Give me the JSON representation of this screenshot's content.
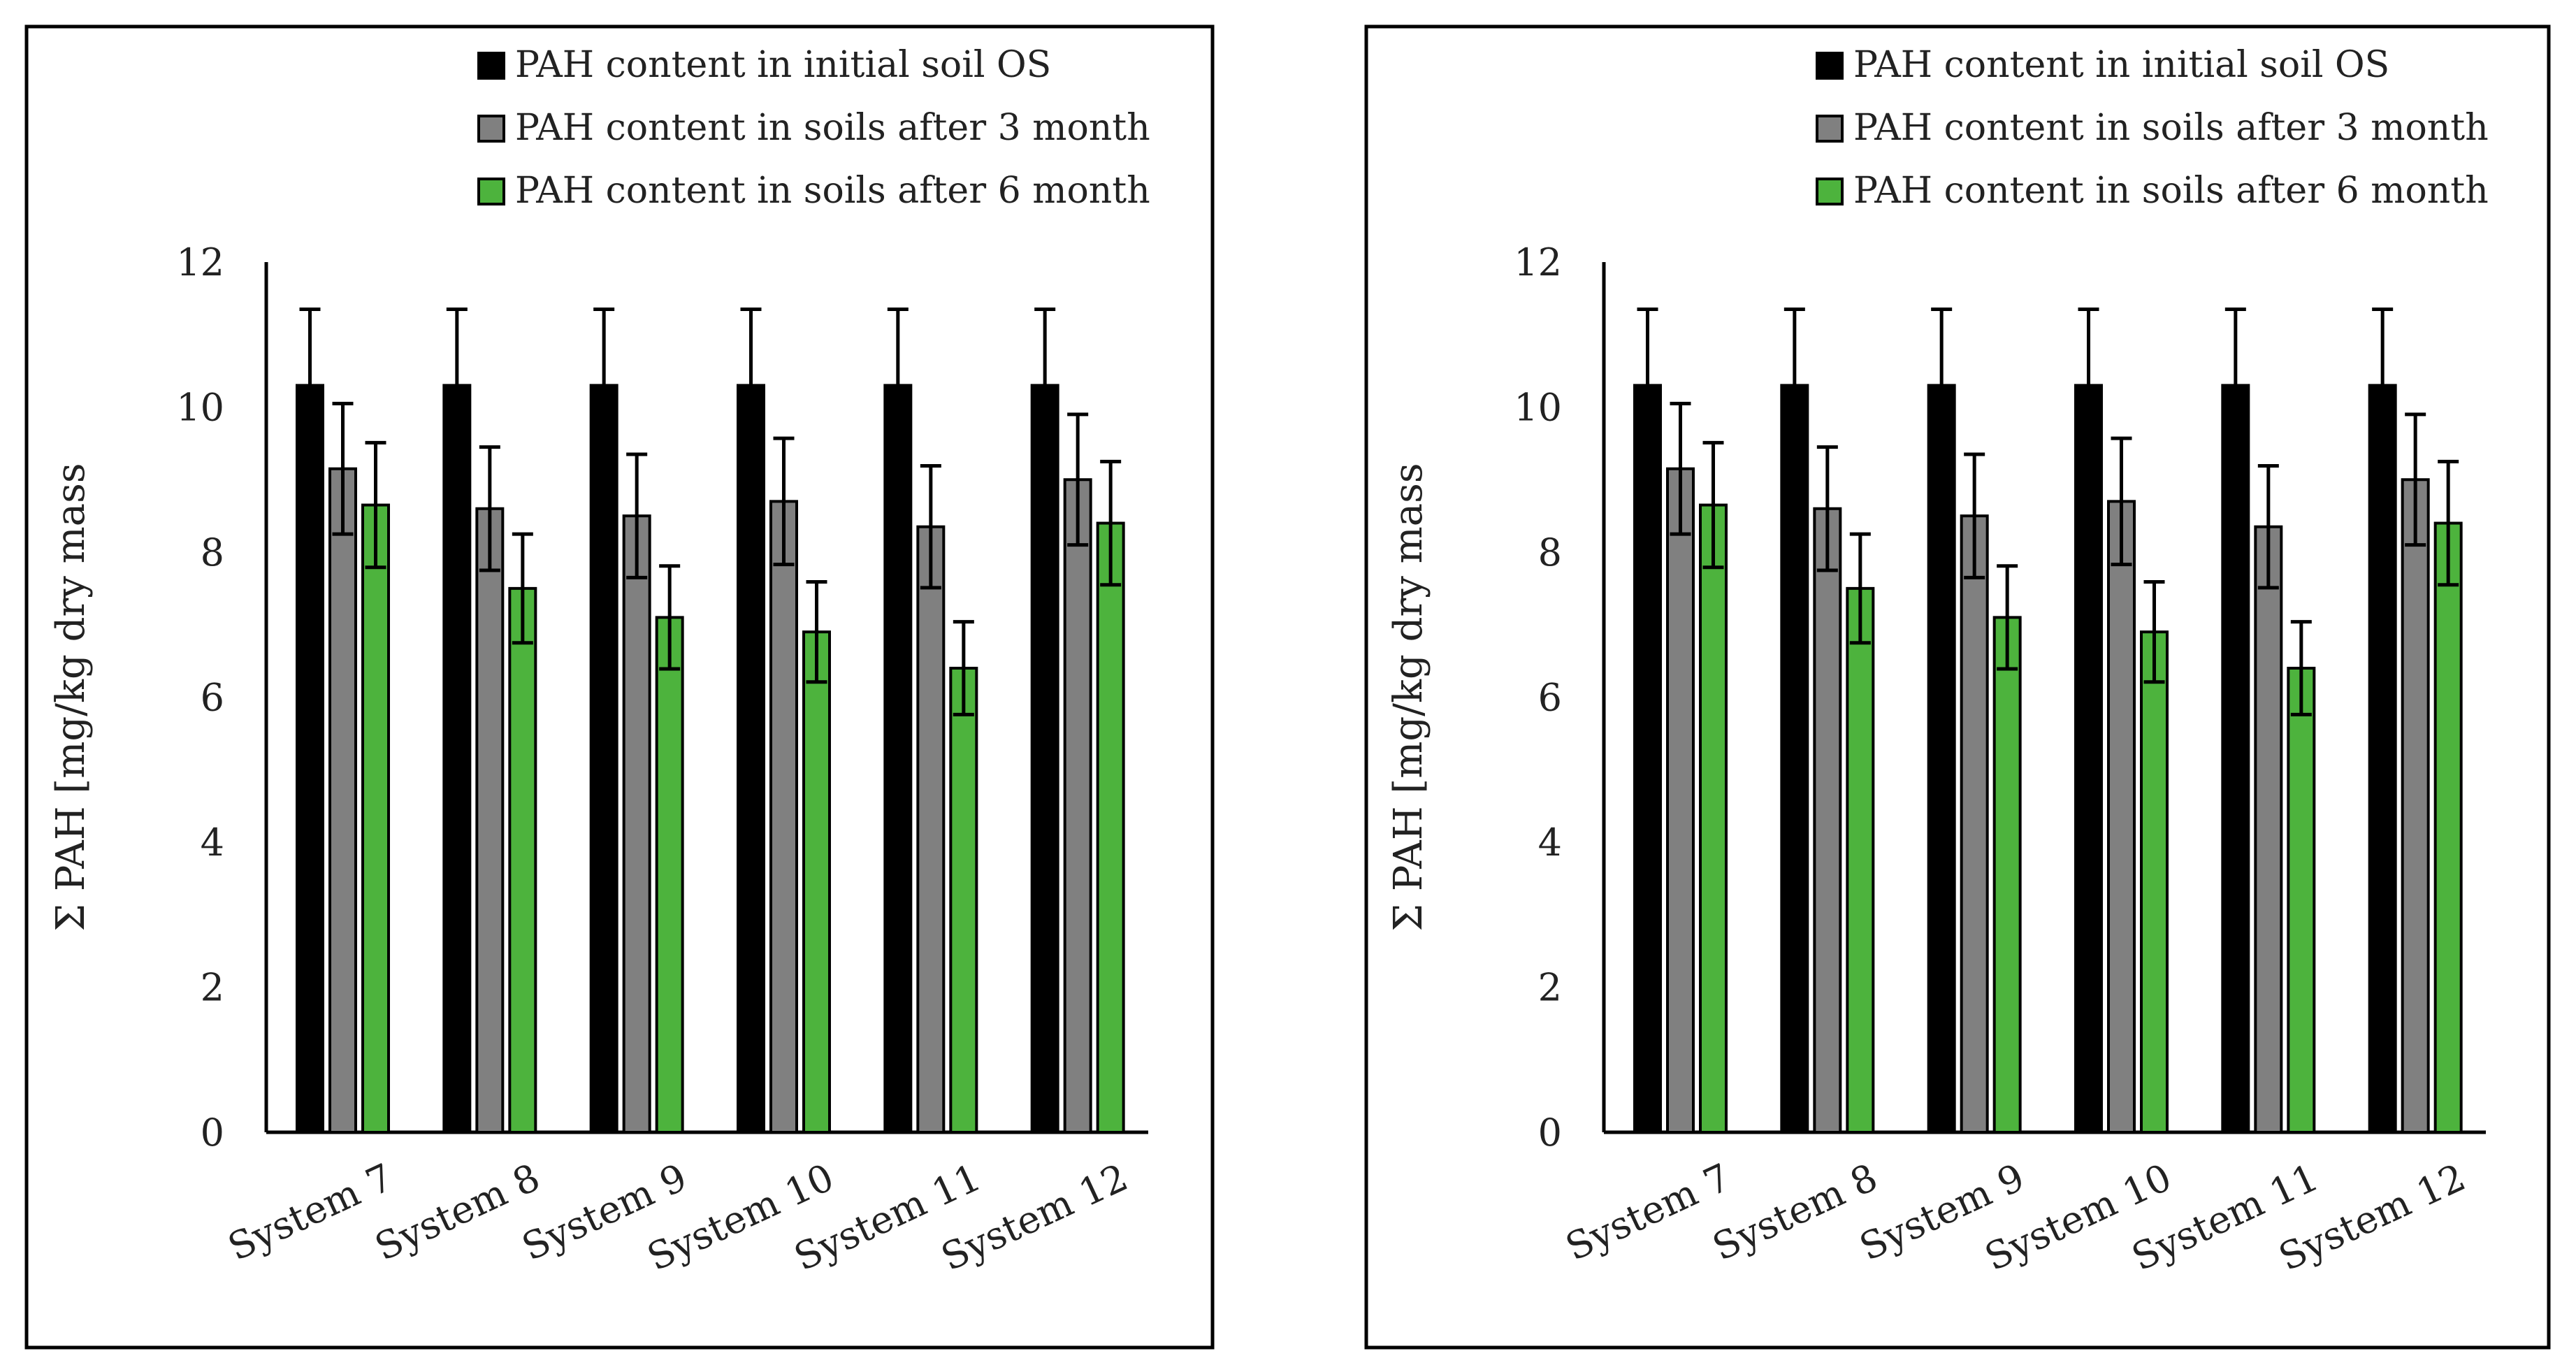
{
  "chart_data": [
    {
      "type": "bar",
      "title": "",
      "xlabel": "",
      "ylabel": "Σ PAH [mg/kg dry mass",
      "ylim": [
        0,
        12
      ],
      "yticks": [
        0,
        2,
        4,
        6,
        8,
        10,
        12
      ],
      "grid": false,
      "legend_position": "top-right",
      "categories": [
        "System 7",
        "System 8",
        "System 9",
        "System 10",
        "System 11",
        "System 12"
      ],
      "series": [
        {
          "name": "PAH content in initial soil OS",
          "color": "#000000",
          "values": [
            10.3,
            10.3,
            10.3,
            10.3,
            10.3,
            10.3
          ],
          "errors": [
            1.05,
            1.05,
            1.05,
            1.05,
            1.05,
            1.05
          ]
        },
        {
          "name": "PAH content in soils after 3 month",
          "color": "#808080",
          "values": [
            9.15,
            8.6,
            8.5,
            8.7,
            8.35,
            9.0
          ],
          "errors": [
            0.9,
            0.85,
            0.85,
            0.87,
            0.84,
            0.9
          ]
        },
        {
          "name": "PAH content in soils after 6 month",
          "color": "#4db33d",
          "values": [
            8.65,
            7.5,
            7.1,
            6.9,
            6.4,
            8.4
          ],
          "errors": [
            0.86,
            0.75,
            0.71,
            0.69,
            0.64,
            0.85
          ]
        }
      ]
    },
    {
      "type": "bar",
      "title": "",
      "xlabel": "",
      "ylabel": "Σ PAH [mg/kg dry mass",
      "ylim": [
        0,
        12
      ],
      "yticks": [
        0,
        2,
        4,
        6,
        8,
        10,
        12
      ],
      "grid": false,
      "legend_position": "top-right",
      "categories": [
        "System 7",
        "System 8",
        "System 9",
        "System 10",
        "System 11",
        "System 12"
      ],
      "series": [
        {
          "name": "PAH content in initial soil OS",
          "color": "#000000",
          "values": [
            10.3,
            10.3,
            10.3,
            10.3,
            10.3,
            10.3
          ],
          "errors": [
            1.05,
            1.05,
            1.05,
            1.05,
            1.05,
            1.05
          ]
        },
        {
          "name": "PAH content in soils after 3 month",
          "color": "#808080",
          "values": [
            9.15,
            8.6,
            8.5,
            8.7,
            8.35,
            9.0
          ],
          "errors": [
            0.9,
            0.85,
            0.85,
            0.87,
            0.84,
            0.9
          ]
        },
        {
          "name": "PAH content in soils after 6 month",
          "color": "#4db33d",
          "values": [
            8.65,
            7.5,
            7.1,
            6.9,
            6.4,
            8.4
          ],
          "errors": [
            0.86,
            0.75,
            0.71,
            0.69,
            0.64,
            0.85
          ]
        }
      ]
    }
  ]
}
